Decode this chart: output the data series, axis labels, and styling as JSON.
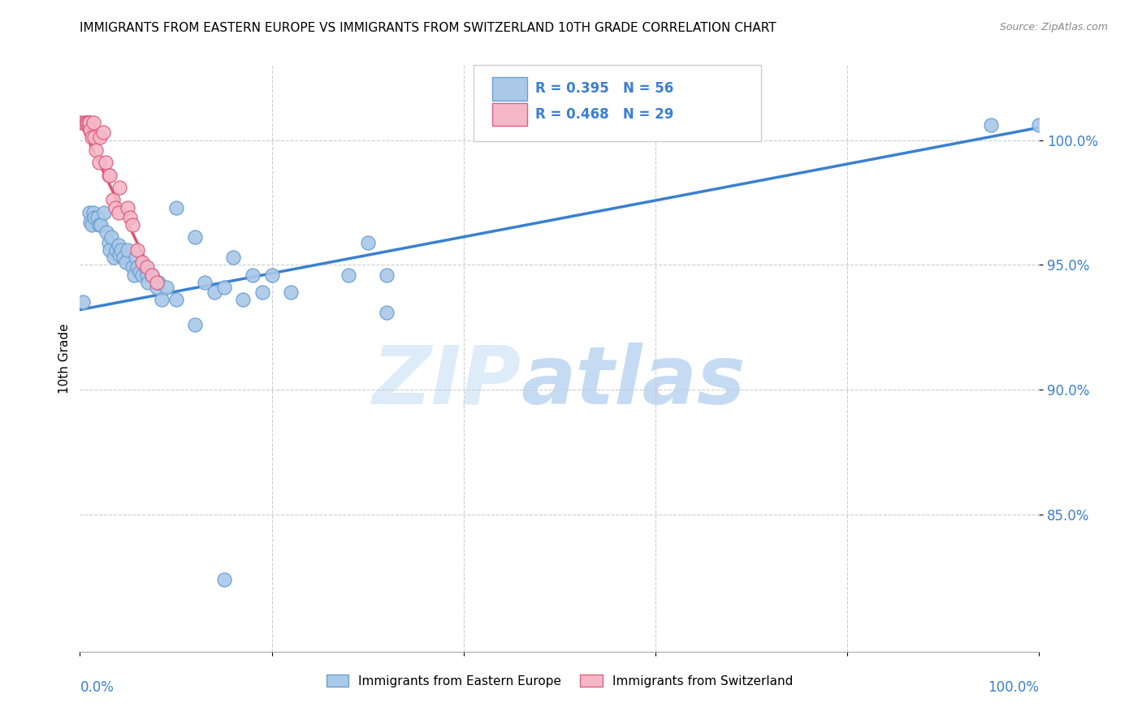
{
  "title": "IMMIGRANTS FROM EASTERN EUROPE VS IMMIGRANTS FROM SWITZERLAND 10TH GRADE CORRELATION CHART",
  "source_text": "Source: ZipAtlas.com",
  "xlabel_bottom_left": "0.0%",
  "xlabel_bottom_right": "100.0%",
  "ylabel": "10th Grade",
  "y_tick_labels": [
    "100.0%",
    "95.0%",
    "90.0%",
    "85.0%"
  ],
  "y_tick_values": [
    1.0,
    0.95,
    0.9,
    0.85
  ],
  "x_range": [
    0.0,
    1.0
  ],
  "y_range": [
    0.795,
    1.03
  ],
  "legend_r_blue": "R = 0.395",
  "legend_n_blue": "N = 56",
  "legend_r_pink": "R = 0.468",
  "legend_n_pink": "N = 29",
  "legend_label_blue": "Immigrants from Eastern Europe",
  "legend_label_pink": "Immigrants from Switzerland",
  "watermark_zip": "ZIP",
  "watermark_atlas": "atlas",
  "blue_color": "#aac8e8",
  "pink_color": "#f4b8c8",
  "blue_edge_color": "#6aa0d0",
  "pink_edge_color": "#e06080",
  "trendline_blue_color": "#3a80d0",
  "trendline_pink_color": "#e05070",
  "blue_scatter": [
    [
      0.003,
      0.935
    ],
    [
      0.01,
      0.971
    ],
    [
      0.011,
      0.967
    ],
    [
      0.012,
      0.966
    ],
    [
      0.014,
      0.971
    ],
    [
      0.015,
      0.969
    ],
    [
      0.018,
      0.969
    ],
    [
      0.02,
      0.966
    ],
    [
      0.022,
      0.966
    ],
    [
      0.025,
      0.971
    ],
    [
      0.028,
      0.963
    ],
    [
      0.03,
      0.959
    ],
    [
      0.031,
      0.956
    ],
    [
      0.033,
      0.961
    ],
    [
      0.035,
      0.953
    ],
    [
      0.038,
      0.956
    ],
    [
      0.04,
      0.958
    ],
    [
      0.041,
      0.954
    ],
    [
      0.043,
      0.956
    ],
    [
      0.045,
      0.953
    ],
    [
      0.048,
      0.951
    ],
    [
      0.05,
      0.956
    ],
    [
      0.055,
      0.949
    ],
    [
      0.056,
      0.946
    ],
    [
      0.058,
      0.953
    ],
    [
      0.06,
      0.949
    ],
    [
      0.062,
      0.947
    ],
    [
      0.065,
      0.946
    ],
    [
      0.068,
      0.949
    ],
    [
      0.07,
      0.946
    ],
    [
      0.071,
      0.943
    ],
    [
      0.075,
      0.946
    ],
    [
      0.08,
      0.941
    ],
    [
      0.082,
      0.943
    ],
    [
      0.085,
      0.936
    ],
    [
      0.09,
      0.941
    ],
    [
      0.1,
      0.973
    ],
    [
      0.1,
      0.936
    ],
    [
      0.12,
      0.961
    ],
    [
      0.12,
      0.926
    ],
    [
      0.13,
      0.943
    ],
    [
      0.14,
      0.939
    ],
    [
      0.15,
      0.941
    ],
    [
      0.16,
      0.953
    ],
    [
      0.17,
      0.936
    ],
    [
      0.18,
      0.946
    ],
    [
      0.19,
      0.939
    ],
    [
      0.2,
      0.946
    ],
    [
      0.22,
      0.939
    ],
    [
      0.28,
      0.946
    ],
    [
      0.3,
      0.959
    ],
    [
      0.32,
      0.931
    ],
    [
      0.32,
      0.946
    ],
    [
      0.15,
      0.824
    ],
    [
      0.95,
      1.006
    ],
    [
      1.0,
      1.006
    ]
  ],
  "pink_scatter": [
    [
      0.0,
      1.007
    ],
    [
      0.004,
      1.007
    ],
    [
      0.006,
      1.007
    ],
    [
      0.007,
      1.007
    ],
    [
      0.009,
      1.007
    ],
    [
      0.01,
      1.007
    ],
    [
      0.011,
      1.004
    ],
    [
      0.012,
      1.001
    ],
    [
      0.014,
      1.007
    ],
    [
      0.015,
      1.001
    ],
    [
      0.017,
      0.996
    ],
    [
      0.02,
      0.991
    ],
    [
      0.021,
      1.001
    ],
    [
      0.024,
      1.003
    ],
    [
      0.027,
      0.991
    ],
    [
      0.03,
      0.986
    ],
    [
      0.031,
      0.986
    ],
    [
      0.034,
      0.976
    ],
    [
      0.037,
      0.973
    ],
    [
      0.04,
      0.971
    ],
    [
      0.041,
      0.981
    ],
    [
      0.05,
      0.973
    ],
    [
      0.052,
      0.969
    ],
    [
      0.055,
      0.966
    ],
    [
      0.06,
      0.956
    ],
    [
      0.065,
      0.951
    ],
    [
      0.07,
      0.949
    ],
    [
      0.075,
      0.946
    ],
    [
      0.08,
      0.943
    ]
  ],
  "blue_trendline_x": [
    0.0,
    1.0
  ],
  "blue_trendline_y": [
    0.932,
    1.005
  ],
  "pink_trendline_x": [
    0.0,
    0.083
  ],
  "pink_trendline_y": [
    1.007,
    0.94
  ]
}
